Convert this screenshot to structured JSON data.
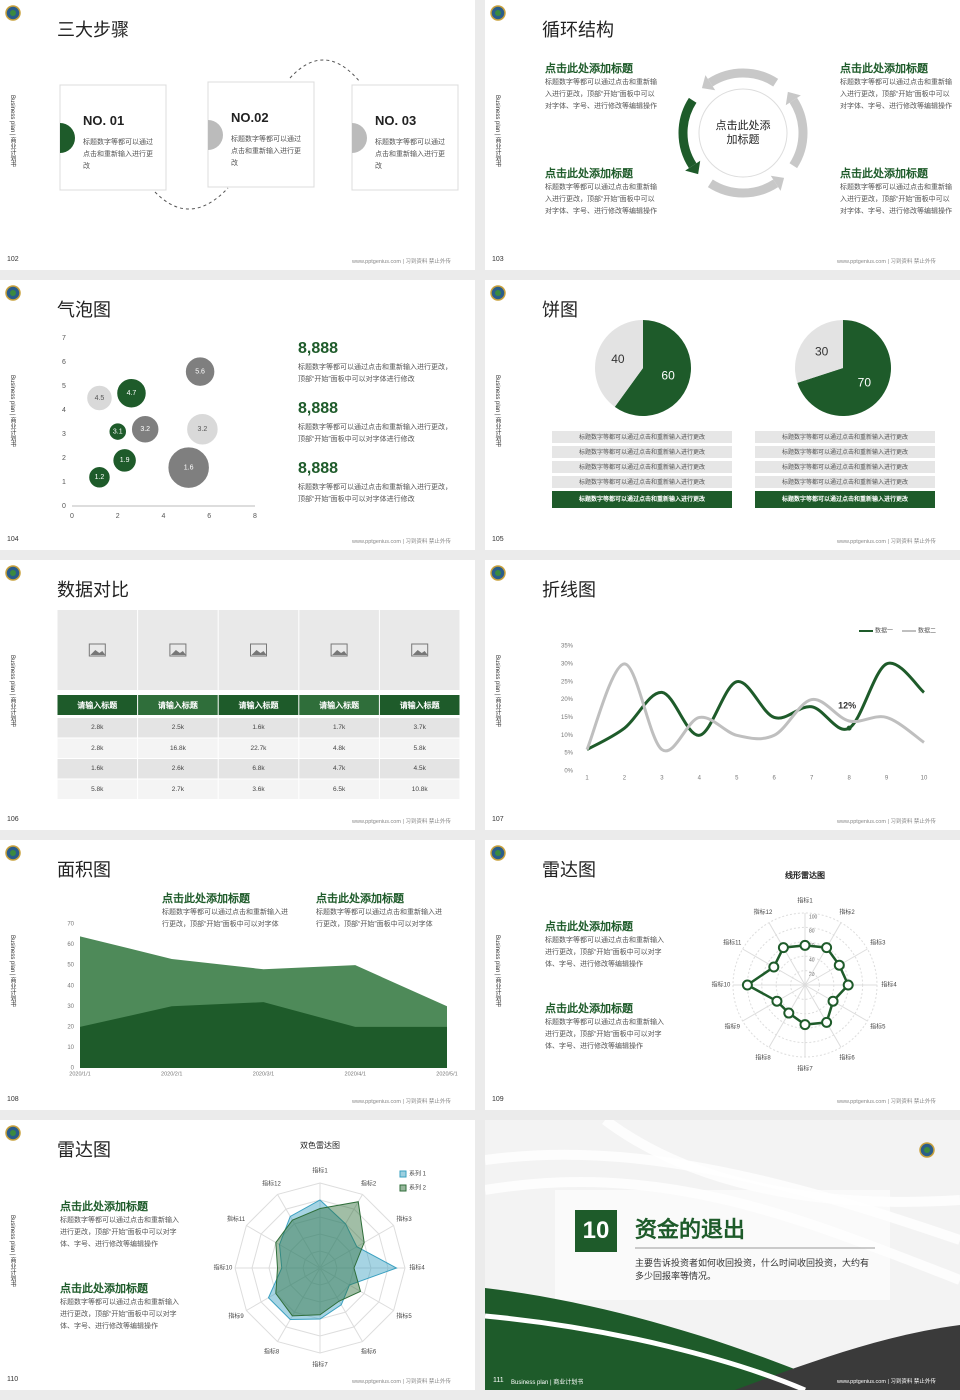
{
  "side_label": "Business plan | 商业计划书",
  "footer": "www.pptgenius.com | 习到资料 禁止外传",
  "slides": [
    {
      "page": "102",
      "title": "三大步骤",
      "items": [
        {
          "no": "NO. 01",
          "text": "标题数字等都可以通过点击和重新输入进行更改"
        },
        {
          "no": "NO.02",
          "text": "标题数字等都可以通过点击和重新输入进行更改"
        },
        {
          "no": "NO. 03",
          "text": "标题数字等都可以通过点击和重新输入进行更改"
        }
      ]
    },
    {
      "page": "103",
      "title": "循环结构",
      "center": "点击此处添加标题",
      "blocks": [
        {
          "heading": "点击此处添加标题",
          "text": "标题数字等都可以通过点击和重新输入进行更改，顶部“开始”面板中可以对字体、字号、进行修改等编辑操作"
        },
        {
          "heading": "点击此处添加标题",
          "text": "标题数字等都可以通过点击和重新输入进行更改，顶部“开始”面板中可以对字体、字号、进行修改等编辑操作"
        },
        {
          "heading": "点击此处添加标题",
          "text": "标题数字等都可以通过点击和重新输入进行更改，顶部“开始”面板中可以对字体、字号、进行修改等编辑操作"
        },
        {
          "heading": "点击此处添加标题",
          "text": "标题数字等都可以通过点击和重新输入进行更改，顶部“开始”面板中可以对字体、字号、进行修改等编辑操作"
        }
      ]
    },
    {
      "page": "104",
      "title": "气泡图",
      "stats": [
        {
          "value": "8,888",
          "text": "标题数字等都可以通过点击和重新输入进行更改，顶部“开始”面板中可以对字体进行修改"
        },
        {
          "value": "8,888",
          "text": "标题数字等都可以通过点击和重新输入进行更改，顶部“开始”面板中可以对字体进行修改"
        },
        {
          "value": "8,888",
          "text": "标题数字等都可以通过点击和重新输入进行更改，顶部“开始”面板中可以对字体进行修改"
        }
      ]
    },
    {
      "page": "105",
      "title": "饼图",
      "lists": [
        [
          "标题数字等都可以通过点击和重新输入进行更改",
          "标题数字等都可以通过点击和重新输入进行更改",
          "标题数字等都可以通过点击和重新输入进行更改",
          "标题数字等都可以通过点击和重新输入进行更改",
          "标题数字等都可以通过点击和重新输入进行更改"
        ],
        [
          "标题数字等都可以通过点击和重新输入进行更改",
          "标题数字等都可以通过点击和重新输入进行更改",
          "标题数字等都可以通过点击和重新输入进行更改",
          "标题数字等都可以通过点击和重新输入进行更改",
          "标题数字等都可以通过点击和重新输入进行更改"
        ]
      ]
    },
    {
      "page": "106",
      "title": "数据对比",
      "table": {
        "headers": [
          "请输入标题",
          "请输入标题",
          "请输入标题",
          "请输入标题",
          "请输入标题"
        ],
        "rows": [
          [
            "2.8k",
            "2.5k",
            "1.6k",
            "1.7k",
            "3.7k"
          ],
          [
            "2.8k",
            "16.8k",
            "22.7k",
            "4.8k",
            "5.8k"
          ],
          [
            "1.6k",
            "2.6k",
            "6.8k",
            "4.7k",
            "4.5k"
          ],
          [
            "5.8k",
            "2.7k",
            "3.6k",
            "6.5k",
            "10.8k"
          ]
        ]
      }
    },
    {
      "page": "107",
      "title": "折线图"
    },
    {
      "page": "108",
      "title": "面积图",
      "blocks": [
        {
          "heading": "点击此处添加标题",
          "text": "标题数字等都可以通过点击和重新输入进行更改，顶部“开始”面板中可以对字体"
        },
        {
          "heading": "点击此处添加标题",
          "text": "标题数字等都可以通过点击和重新输入进行更改，顶部“开始”面板中可以对字体"
        }
      ]
    },
    {
      "page": "109",
      "title": "雷达图",
      "blocks": [
        {
          "heading": "点击此处添加标题",
          "text": "标题数字等都可以通过点击和重新输入进行更改，顶部“开始”面板中可以对字体、字号、进行修改等编辑操作"
        },
        {
          "heading": "点击此处添加标题",
          "text": "标题数字等都可以通过点击和重新输入进行更改，顶部“开始”面板中可以对字体、字号、进行修改等编辑操作"
        }
      ]
    },
    {
      "page": "110",
      "title": "雷达图",
      "blocks": [
        {
          "heading": "点击此处添加标题",
          "text": "标题数字等都可以通过点击和重新输入进行更改，顶部“开始”面板中可以对字体、字号、进行修改等编辑操作"
        },
        {
          "heading": "点击此处添加标题",
          "text": "标题数字等都可以通过点击和重新输入进行更改，顶部“开始”面板中可以对字体、字号、进行修改等编辑操作"
        }
      ]
    },
    {
      "page": "111",
      "number": "10",
      "title": "资金的退出",
      "text": "主要告诉投资者如何收回投资，什么时间收回投资，大约有多少回报率等情况。"
    }
  ],
  "chart_data": [
    {
      "type": "bubble",
      "xlim": [
        0,
        8
      ],
      "xticks": [
        0,
        2,
        4,
        6,
        8
      ],
      "ylim": [
        0,
        7
      ],
      "yticks": [
        0,
        1,
        2,
        3,
        4,
        5,
        6,
        7
      ],
      "series": [
        {
          "color": "#1e5b2a",
          "x": [
            1.2,
            2.3,
            2.0,
            2.6
          ],
          "values": [
            1.2,
            1.9,
            3.1,
            4.7
          ],
          "sizes": [
            11,
            12,
            9,
            15
          ]
        },
        {
          "color": "#7f7f7f",
          "x": [
            3.2,
            5.6,
            5.1
          ],
          "values": [
            3.2,
            5.6,
            1.6
          ],
          "sizes": [
            14,
            15,
            21
          ]
        },
        {
          "color": "#d9d9d9",
          "x": [
            1.2,
            5.7
          ],
          "values": [
            4.5,
            3.2
          ],
          "sizes": [
            13,
            16
          ]
        }
      ]
    },
    {
      "type": "pie",
      "values": [
        60,
        40
      ],
      "colors": [
        "#1e5b2a",
        "#e3e3e3"
      ]
    },
    {
      "type": "pie",
      "values": [
        70,
        30
      ],
      "colors": [
        "#1e5b2a",
        "#e3e3e3"
      ]
    },
    {
      "type": "line",
      "x": [
        1,
        2,
        3,
        4,
        5,
        6,
        7,
        8,
        9,
        10
      ],
      "xlim": [
        1,
        10
      ],
      "ylim": [
        0,
        35
      ],
      "yticks": [
        {
          "value": 0,
          "label": "0%"
        },
        {
          "value": 5,
          "label": "5%"
        },
        {
          "value": 10,
          "label": "10%"
        },
        {
          "value": 15,
          "label": "15%"
        },
        {
          "value": 20,
          "label": "20%"
        },
        {
          "value": 25,
          "label": "25%"
        },
        {
          "value": 30,
          "label": "30%"
        },
        {
          "value": 35,
          "label": "35%"
        }
      ],
      "series": [
        {
          "name": "数据一",
          "color": "#1e5b2a",
          "values": [
            6,
            12,
            22,
            10,
            25,
            15,
            18,
            12,
            30,
            22
          ],
          "value_labels": [
            null,
            null,
            null,
            null,
            null,
            null,
            null,
            "12%",
            null,
            null
          ]
        },
        {
          "name": "数据二",
          "color": "#bfbfbf",
          "values": [
            6,
            30,
            6,
            15,
            10,
            10,
            20,
            14,
            15,
            8
          ]
        }
      ],
      "legend": "top-right"
    },
    {
      "type": "area",
      "categories": [
        "2020/1/1",
        "2020/2/1",
        "2020/3/1",
        "2020/4/1",
        "2020/5/1"
      ],
      "ylim": [
        0,
        70
      ],
      "yticks": [
        0,
        10,
        20,
        30,
        40,
        50,
        60,
        70
      ],
      "series": [
        {
          "color": "#4e8a59",
          "values": [
            64,
            53,
            48,
            50,
            30
          ]
        },
        {
          "color": "#1e5b2a",
          "values": [
            20,
            30,
            32,
            20,
            20
          ]
        }
      ]
    },
    {
      "type": "radar",
      "title": "线形雷达图",
      "markers": true,
      "categories": [
        "指标1",
        "指标2",
        "指标3",
        "指标4",
        "指标5",
        "指标6",
        "指标7",
        "指标8",
        "指标9",
        "指标10",
        "指标11",
        "指标12"
      ],
      "rlim": [
        0,
        100
      ],
      "rticks": [
        20,
        40,
        60,
        80,
        100
      ],
      "series": [
        {
          "color": "#1e5b2a",
          "values": [
            55,
            60,
            55,
            60,
            45,
            60,
            55,
            45,
            45,
            80,
            50,
            60
          ]
        }
      ]
    },
    {
      "type": "radar",
      "title": "双色雷达图",
      "fill": true,
      "categories": [
        "指标1",
        "指标2",
        "指标3",
        "指标4",
        "指标5",
        "指标6",
        "指标7",
        "指标8",
        "指标9",
        "指标10",
        "指标11",
        "指标12"
      ],
      "rlim": [
        0,
        100
      ],
      "legend": "top-right",
      "series": [
        {
          "name": "系列 1",
          "color": "#3aa0c0",
          "values": [
            80,
            60,
            50,
            90,
            40,
            50,
            60,
            70,
            70,
            45,
            55,
            70
          ]
        },
        {
          "name": "系列 2",
          "color": "#2f6e3a",
          "values": [
            70,
            90,
            60,
            40,
            55,
            45,
            55,
            65,
            60,
            50,
            60,
            65
          ]
        }
      ]
    }
  ]
}
